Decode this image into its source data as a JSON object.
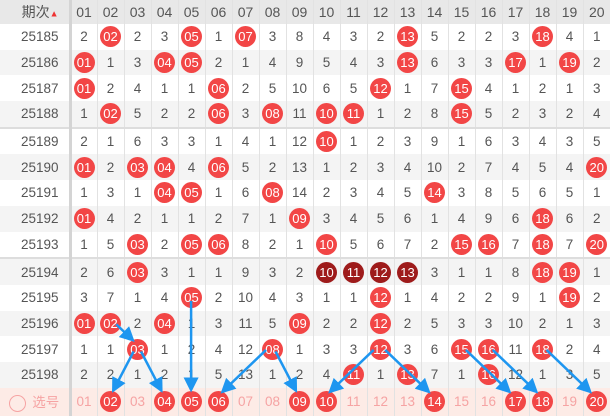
{
  "header": {
    "period_label": "期次",
    "sort_icon": "sort-icon",
    "columns": [
      "01",
      "02",
      "03",
      "04",
      "05",
      "06",
      "07",
      "08",
      "09",
      "10",
      "11",
      "12",
      "13",
      "14",
      "15",
      "16",
      "17",
      "18",
      "19",
      "20"
    ]
  },
  "rows": [
    {
      "period": "25185",
      "cells": [
        "2",
        "02",
        "2",
        "3",
        "05",
        "1",
        "07",
        "3",
        "8",
        "4",
        "3",
        "2",
        "13",
        "5",
        "2",
        "2",
        "3",
        "18",
        "4",
        "1"
      ]
    },
    {
      "period": "25186",
      "cells": [
        "01",
        "1",
        "3",
        "04",
        "05",
        "2",
        "1",
        "4",
        "9",
        "5",
        "4",
        "3",
        "13",
        "6",
        "3",
        "3",
        "17",
        "1",
        "19",
        "2"
      ]
    },
    {
      "period": "25187",
      "cells": [
        "01",
        "2",
        "4",
        "1",
        "1",
        "06",
        "2",
        "5",
        "10",
        "6",
        "5",
        "12",
        "1",
        "7",
        "15",
        "4",
        "1",
        "2",
        "1",
        "3"
      ]
    },
    {
      "period": "25188",
      "cells": [
        "1",
        "02",
        "5",
        "2",
        "2",
        "06",
        "3",
        "08",
        "11",
        "10",
        "11",
        "1",
        "2",
        "8",
        "15",
        "5",
        "2",
        "3",
        "2",
        "4"
      ]
    },
    {
      "period": "25189",
      "cells": [
        "2",
        "1",
        "6",
        "3",
        "3",
        "1",
        "4",
        "1",
        "12",
        "10",
        "1",
        "2",
        "3",
        "9",
        "1",
        "6",
        "3",
        "4",
        "3",
        "5"
      ]
    },
    {
      "period": "25190",
      "cells": [
        "01",
        "2",
        "03",
        "04",
        "4",
        "06",
        "5",
        "2",
        "13",
        "1",
        "2",
        "3",
        "4",
        "10",
        "2",
        "7",
        "4",
        "5",
        "4",
        "20"
      ]
    },
    {
      "period": "25191",
      "cells": [
        "1",
        "3",
        "1",
        "04",
        "05",
        "1",
        "6",
        "08",
        "14",
        "2",
        "3",
        "4",
        "5",
        "14",
        "3",
        "8",
        "5",
        "6",
        "5",
        "1"
      ]
    },
    {
      "period": "25192",
      "cells": [
        "01",
        "4",
        "2",
        "1",
        "1",
        "2",
        "7",
        "1",
        "09",
        "3",
        "4",
        "5",
        "6",
        "1",
        "4",
        "9",
        "6",
        "18",
        "6",
        "2"
      ]
    },
    {
      "period": "25193",
      "cells": [
        "1",
        "5",
        "03",
        "2",
        "05",
        "06",
        "8",
        "2",
        "1",
        "10",
        "5",
        "6",
        "7",
        "2",
        "15",
        "16",
        "7",
        "18",
        "7",
        "20"
      ]
    },
    {
      "period": "25194",
      "cells": [
        "2",
        "6",
        "03",
        "3",
        "1",
        "1",
        "9",
        "3",
        "2",
        "10",
        "11",
        "12",
        "13",
        "3",
        "1",
        "1",
        "8",
        "18",
        "19",
        "1"
      ],
      "dark": [
        9,
        10,
        11,
        12
      ]
    },
    {
      "period": "25195",
      "cells": [
        "3",
        "7",
        "1",
        "4",
        "05",
        "2",
        "10",
        "4",
        "3",
        "1",
        "1",
        "12",
        "1",
        "4",
        "2",
        "2",
        "9",
        "1",
        "19",
        "2"
      ]
    },
    {
      "period": "25196",
      "cells": [
        "01",
        "02",
        "2",
        "04",
        "1",
        "3",
        "11",
        "5",
        "09",
        "2",
        "2",
        "12",
        "2",
        "5",
        "3",
        "3",
        "10",
        "2",
        "1",
        "3"
      ]
    },
    {
      "period": "25197",
      "cells": [
        "1",
        "1",
        "03",
        "1",
        "2",
        "4",
        "12",
        "08",
        "1",
        "3",
        "3",
        "12",
        "3",
        "6",
        "15",
        "16",
        "11",
        "18",
        "2",
        "4"
      ]
    },
    {
      "period": "25198",
      "cells": [
        "2",
        "2",
        "1",
        "2",
        "1",
        "5",
        "13",
        "1",
        "2",
        "4",
        "11",
        "1",
        "13",
        "7",
        "1",
        "16",
        "12",
        "1",
        "3",
        "5"
      ]
    }
  ],
  "selection": {
    "label": "选号",
    "selected": [
      "02",
      "04",
      "05",
      "06",
      "09",
      "10",
      "14",
      "17",
      "18",
      "20"
    ]
  },
  "colors": {
    "ball": "#f24646",
    "ball_repeat": "#9e1b1b",
    "arrow": "#1e96f0"
  }
}
